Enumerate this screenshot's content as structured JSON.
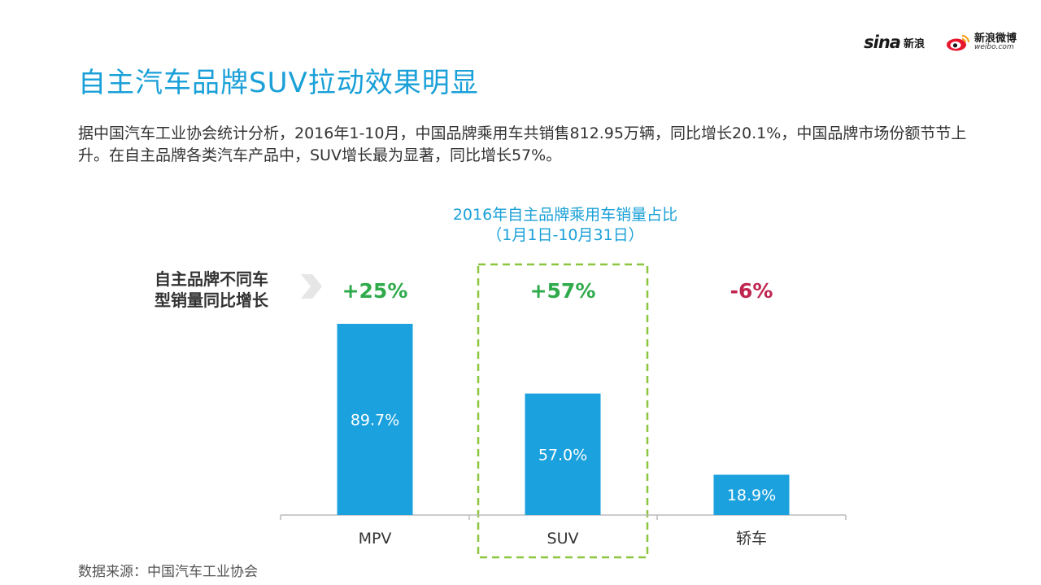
{
  "header": {
    "title": "自主汽车品牌SUV拉动效果明显",
    "logo_sina": "sina",
    "logo_sina_cn": "新浪",
    "logo_weibo_cn": "新浪微博",
    "logo_weibo_en": "weibo.com"
  },
  "intro_text": "据中国汽车工业协会统计分析，2016年1-10月，中国品牌乘用车共销售812.95万辆，同比增长20.1%，中国品牌市场份额节节上升。在自主品牌各类汽车产品中，SUV增长最为显著，同比增长57%。",
  "side_label": {
    "line1": "自主品牌不同车",
    "line2": "型销量同比增长"
  },
  "source": "数据来源：中国汽车工业协会",
  "colors": {
    "bar": "#1ba1dd",
    "title": "#1aa0d8",
    "growth_positive": "#2eaa4a",
    "growth_negative": "#c0254f",
    "highlight_border": "#8cc63f",
    "axis": "#bbbbbb"
  },
  "chart_data": {
    "type": "bar",
    "title": "2016年自主品牌乘用车销量占比",
    "subtitle": "（1月1日-10月31日）",
    "categories": [
      "MPV",
      "SUV",
      "轿车"
    ],
    "values": [
      89.7,
      57.0,
      18.9
    ],
    "value_labels": [
      "89.7%",
      "57.0%",
      "18.9%"
    ],
    "growth_labels": [
      "+25%",
      "+57%",
      "-6%"
    ],
    "growth_signs": [
      "positive",
      "positive",
      "negative"
    ],
    "highlight_category": "SUV",
    "ylim": [
      0,
      100
    ],
    "grid": false,
    "legend": "none"
  }
}
